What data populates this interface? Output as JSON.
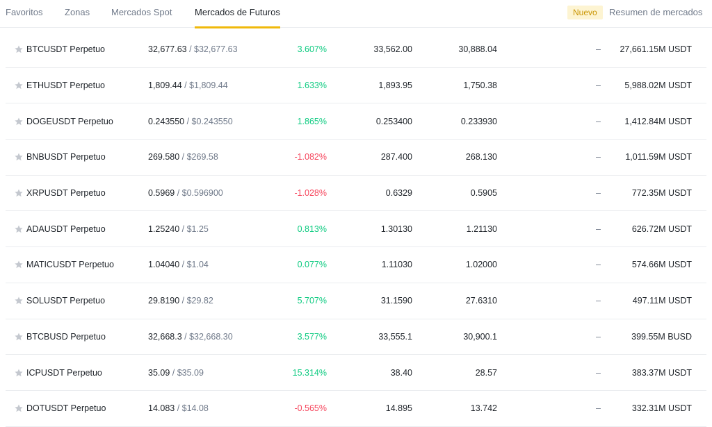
{
  "tabs": [
    {
      "label": "Favoritos"
    },
    {
      "label": "Zonas"
    },
    {
      "label": "Mercados Spot"
    },
    {
      "label": "Mercados de Futuros"
    }
  ],
  "active_tab": "Mercados de Futuros",
  "badge_new": "Nuevo",
  "summary_link": "Resumen de mercados",
  "colors": {
    "up": "#0ecb81",
    "down": "#f6465d",
    "accent": "#f0b90b"
  },
  "rows": [
    {
      "symbol": "BTCUSDT Perpetuo",
      "price": "32,677.63",
      "price_usd": " / $32,677.63",
      "change": "3.607%",
      "direction": "up",
      "high": "33,562.00",
      "low": "30,888.04",
      "extra": "–",
      "volume": "27,661.15M USDT"
    },
    {
      "symbol": "ETHUSDT Perpetuo",
      "price": "1,809.44",
      "price_usd": " / $1,809.44",
      "change": "1.633%",
      "direction": "up",
      "high": "1,893.95",
      "low": "1,750.38",
      "extra": "–",
      "volume": "5,988.02M USDT"
    },
    {
      "symbol": "DOGEUSDT Perpetuo",
      "price": "0.243550",
      "price_usd": " / $0.243550",
      "change": "1.865%",
      "direction": "up",
      "high": "0.253400",
      "low": "0.233930",
      "extra": "–",
      "volume": "1,412.84M USDT"
    },
    {
      "symbol": "BNBUSDT Perpetuo",
      "price": "269.580",
      "price_usd": " / $269.58",
      "change": "-1.082%",
      "direction": "down",
      "high": "287.400",
      "low": "268.130",
      "extra": "–",
      "volume": "1,011.59M USDT"
    },
    {
      "symbol": "XRPUSDT Perpetuo",
      "price": "0.5969",
      "price_usd": " / $0.596900",
      "change": "-1.028%",
      "direction": "down",
      "high": "0.6329",
      "low": "0.5905",
      "extra": "–",
      "volume": "772.35M USDT"
    },
    {
      "symbol": "ADAUSDT Perpetuo",
      "price": "1.25240",
      "price_usd": " / $1.25",
      "change": "0.813%",
      "direction": "up",
      "high": "1.30130",
      "low": "1.21130",
      "extra": "–",
      "volume": "626.72M USDT"
    },
    {
      "symbol": "MATICUSDT Perpetuo",
      "price": "1.04040",
      "price_usd": " / $1.04",
      "change": "0.077%",
      "direction": "up",
      "high": "1.11030",
      "low": "1.02000",
      "extra": "–",
      "volume": "574.66M USDT"
    },
    {
      "symbol": "SOLUSDT Perpetuo",
      "price": "29.8190",
      "price_usd": " / $29.82",
      "change": "5.707%",
      "direction": "up",
      "high": "31.1590",
      "low": "27.6310",
      "extra": "–",
      "volume": "497.11M USDT"
    },
    {
      "symbol": "BTCBUSD Perpetuo",
      "price": "32,668.3",
      "price_usd": " / $32,668.30",
      "change": "3.577%",
      "direction": "up",
      "high": "33,555.1",
      "low": "30,900.1",
      "extra": "–",
      "volume": "399.55M BUSD"
    },
    {
      "symbol": "ICPUSDT Perpetuo",
      "price": "35.09",
      "price_usd": " / $35.09",
      "change": "15.314%",
      "direction": "up",
      "high": "38.40",
      "low": "28.57",
      "extra": "–",
      "volume": "383.37M USDT"
    },
    {
      "symbol": "DOTUSDT Perpetuo",
      "price": "14.083",
      "price_usd": " / $14.08",
      "change": "-0.565%",
      "direction": "down",
      "high": "14.895",
      "low": "13.742",
      "extra": "–",
      "volume": "332.31M USDT"
    }
  ]
}
